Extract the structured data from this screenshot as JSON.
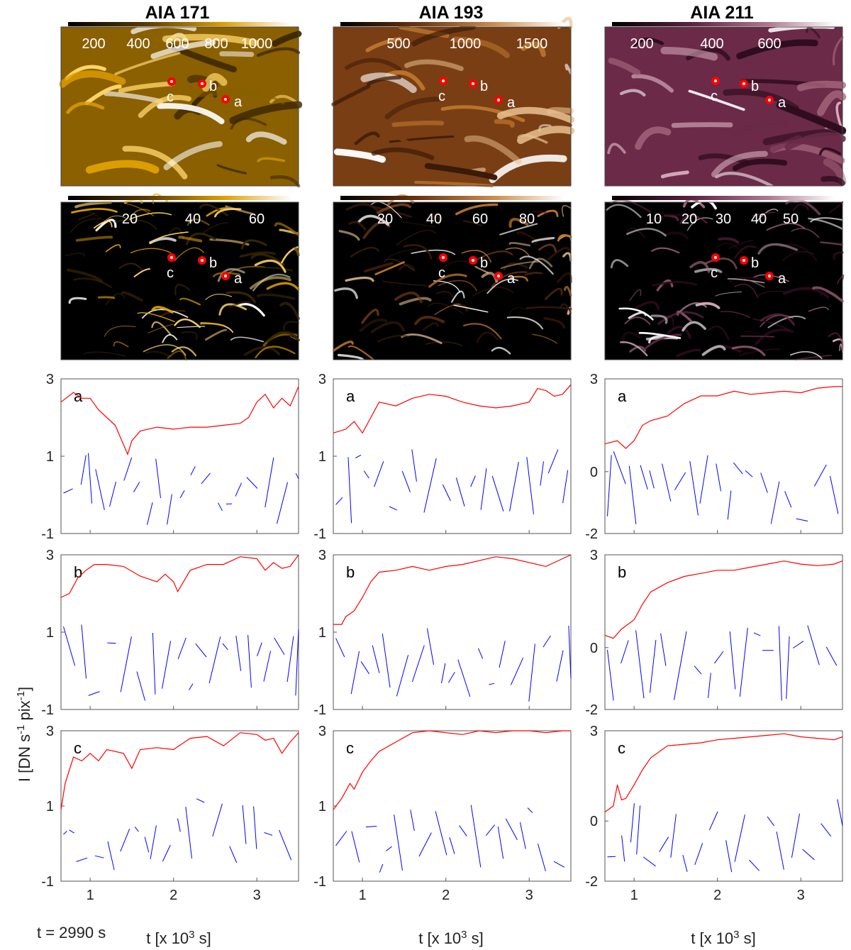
{
  "headers": [
    "AIA 171",
    "AIA 193",
    "AIA 211"
  ],
  "colors": {
    "aia171": [
      "#000000",
      "#3a2600",
      "#8a6000",
      "#e0a000",
      "#ffd66a",
      "#ffffff"
    ],
    "aia193": [
      "#000000",
      "#3a1a08",
      "#7a3e14",
      "#c0782e",
      "#e8c090",
      "#ffffff"
    ],
    "aia211": [
      "#000000",
      "#2c0c1c",
      "#6a2a48",
      "#a8687e",
      "#dcb2c2",
      "#ffffff"
    ],
    "smoothed": "#ff0000",
    "residual": "#0000ff",
    "marker": "#ff0000"
  },
  "colorbars": {
    "row1": [
      [
        "200",
        "400",
        "600",
        "800",
        "1000"
      ],
      [
        "500",
        "1000",
        "1500"
      ],
      [
        "200",
        "400",
        "600"
      ]
    ],
    "row2": [
      [
        "20",
        "40",
        "60"
      ],
      [
        "20",
        "40",
        "60",
        "80"
      ],
      [
        "10",
        "20",
        "30",
        "40",
        "50"
      ]
    ]
  },
  "point_labels": [
    "a",
    "b",
    "c"
  ],
  "y_axis_label": "I [DN s-1 pix-1]",
  "x_axis_label": "t [x 10^3 s]",
  "time_label": "t = 2990 s",
  "chart_data": [
    {
      "type": "line",
      "panel": "AIA 171 a",
      "xlim": [
        0.65,
        3.5
      ],
      "ylim": [
        -1,
        3
      ],
      "xticks": [
        1,
        2,
        3
      ],
      "yticks": [
        -1,
        1,
        3
      ],
      "series": [
        {
          "color": "red",
          "x": [
            0.65,
            0.8,
            0.9,
            1.0,
            1.1,
            1.2,
            1.3,
            1.4,
            1.45,
            1.5,
            1.6,
            1.8,
            2.0,
            2.2,
            2.4,
            2.6,
            2.8,
            2.9,
            3.0,
            3.1,
            3.2,
            3.3,
            3.4,
            3.5
          ],
          "y": [
            2.4,
            2.65,
            2.5,
            2.5,
            2.2,
            2.0,
            1.8,
            1.3,
            1.05,
            1.4,
            1.65,
            1.75,
            1.7,
            1.75,
            1.75,
            1.8,
            1.85,
            2.0,
            2.4,
            2.6,
            2.25,
            2.5,
            2.3,
            2.8
          ]
        }
      ]
    },
    {
      "type": "line",
      "panel": "AIA 193 a",
      "xlim": [
        0.65,
        3.5
      ],
      "ylim": [
        -1,
        3
      ],
      "xticks": [
        1,
        2,
        3
      ],
      "yticks": [
        -1,
        1,
        3
      ],
      "series": [
        {
          "color": "red",
          "x": [
            0.65,
            0.8,
            0.9,
            1.0,
            1.1,
            1.2,
            1.4,
            1.6,
            1.8,
            2.0,
            2.2,
            2.4,
            2.6,
            2.8,
            3.0,
            3.1,
            3.2,
            3.3,
            3.4,
            3.5
          ],
          "y": [
            1.6,
            1.7,
            1.9,
            1.6,
            2.0,
            2.4,
            2.3,
            2.5,
            2.6,
            2.55,
            2.4,
            2.3,
            2.25,
            2.3,
            2.4,
            2.75,
            2.7,
            2.55,
            2.6,
            2.85
          ]
        }
      ]
    },
    {
      "type": "line",
      "panel": "AIA 211 a",
      "xlim": [
        0.65,
        3.5
      ],
      "ylim": [
        -2,
        3
      ],
      "xticks": [
        1,
        2,
        3
      ],
      "yticks": [
        -2,
        0,
        3
      ],
      "series": [
        {
          "color": "red",
          "x": [
            0.65,
            0.8,
            0.9,
            1.0,
            1.1,
            1.2,
            1.4,
            1.6,
            1.8,
            2.0,
            2.2,
            2.4,
            2.6,
            2.8,
            3.0,
            3.2,
            3.4,
            3.5
          ],
          "y": [
            0.9,
            1.0,
            0.75,
            1.0,
            1.5,
            1.65,
            1.8,
            2.2,
            2.45,
            2.45,
            2.6,
            2.5,
            2.55,
            2.6,
            2.55,
            2.7,
            2.75,
            2.75
          ]
        }
      ]
    },
    {
      "type": "line",
      "panel": "AIA 171 b",
      "xlim": [
        0.65,
        3.5
      ],
      "ylim": [
        -1,
        3
      ],
      "xticks": [
        1,
        2,
        3
      ],
      "yticks": [
        -1,
        1,
        3
      ],
      "series": [
        {
          "color": "red",
          "x": [
            0.65,
            0.75,
            0.85,
            0.95,
            1.05,
            1.2,
            1.4,
            1.6,
            1.8,
            1.9,
            2.0,
            2.05,
            2.2,
            2.4,
            2.6,
            2.8,
            3.0,
            3.1,
            3.2,
            3.3,
            3.4,
            3.5
          ],
          "y": [
            1.9,
            2.0,
            2.4,
            2.6,
            2.75,
            2.75,
            2.7,
            2.45,
            2.3,
            2.5,
            2.3,
            2.05,
            2.6,
            2.75,
            2.75,
            2.95,
            2.9,
            2.6,
            2.8,
            2.65,
            2.7,
            3.0
          ]
        }
      ]
    },
    {
      "type": "line",
      "panel": "AIA 193 b",
      "xlim": [
        0.65,
        3.5
      ],
      "ylim": [
        -1,
        3
      ],
      "xticks": [
        1,
        2,
        3
      ],
      "yticks": [
        -1,
        1,
        3
      ],
      "series": [
        {
          "color": "red",
          "x": [
            0.65,
            0.75,
            0.8,
            0.9,
            1.0,
            1.1,
            1.2,
            1.4,
            1.6,
            1.8,
            2.0,
            2.2,
            2.4,
            2.6,
            2.8,
            3.0,
            3.2,
            3.4,
            3.5
          ],
          "y": [
            1.2,
            1.2,
            1.4,
            1.55,
            1.9,
            2.3,
            2.55,
            2.6,
            2.7,
            2.6,
            2.7,
            2.75,
            2.85,
            2.95,
            2.9,
            2.8,
            2.7,
            2.9,
            3.0
          ]
        }
      ]
    },
    {
      "type": "line",
      "panel": "AIA 211 b",
      "xlim": [
        0.65,
        3.5
      ],
      "ylim": [
        -2,
        3
      ],
      "xticks": [
        1,
        2,
        3
      ],
      "yticks": [
        -2,
        0,
        3
      ],
      "series": [
        {
          "color": "red",
          "x": [
            0.65,
            0.75,
            0.85,
            1.0,
            1.1,
            1.2,
            1.4,
            1.6,
            1.8,
            2.0,
            2.2,
            2.4,
            2.6,
            2.8,
            3.0,
            3.2,
            3.4,
            3.5
          ],
          "y": [
            0.4,
            0.3,
            0.6,
            0.9,
            1.4,
            1.8,
            2.1,
            2.3,
            2.4,
            2.5,
            2.5,
            2.6,
            2.7,
            2.8,
            2.7,
            2.65,
            2.7,
            2.8
          ]
        }
      ]
    },
    {
      "type": "line",
      "panel": "AIA 171 c",
      "xlim": [
        0.65,
        3.5
      ],
      "ylim": [
        -1,
        3
      ],
      "xticks": [
        1,
        2,
        3
      ],
      "yticks": [
        -1,
        1,
        3
      ],
      "series": [
        {
          "color": "red",
          "x": [
            0.65,
            0.7,
            0.8,
            0.9,
            1.0,
            1.1,
            1.2,
            1.4,
            1.5,
            1.6,
            1.8,
            2.0,
            2.2,
            2.4,
            2.6,
            2.8,
            3.0,
            3.1,
            3.2,
            3.3,
            3.4,
            3.5
          ],
          "y": [
            0.9,
            1.6,
            2.3,
            2.2,
            2.4,
            2.2,
            2.5,
            2.4,
            2.0,
            2.5,
            2.55,
            2.5,
            2.8,
            2.85,
            2.6,
            2.95,
            2.9,
            2.75,
            2.8,
            2.4,
            2.7,
            2.95
          ]
        }
      ]
    },
    {
      "type": "line",
      "panel": "AIA 193 c",
      "xlim": [
        0.65,
        3.5
      ],
      "ylim": [
        -1,
        3
      ],
      "xticks": [
        1,
        2,
        3
      ],
      "yticks": [
        -1,
        1,
        3
      ],
      "series": [
        {
          "color": "red",
          "x": [
            0.65,
            0.75,
            0.8,
            0.85,
            0.9,
            1.0,
            1.1,
            1.2,
            1.4,
            1.6,
            1.8,
            2.0,
            2.2,
            2.4,
            2.6,
            2.8,
            3.0,
            3.2,
            3.4,
            3.5
          ],
          "y": [
            0.9,
            1.2,
            1.4,
            1.6,
            1.45,
            1.9,
            2.2,
            2.45,
            2.7,
            2.95,
            3.0,
            2.95,
            2.9,
            3.0,
            2.95,
            3.0,
            3.0,
            2.95,
            3.0,
            3.0
          ]
        }
      ]
    },
    {
      "type": "line",
      "panel": "AIA 211 c",
      "xlim": [
        0.65,
        3.5
      ],
      "ylim": [
        -2,
        3
      ],
      "xticks": [
        1,
        2,
        3
      ],
      "yticks": [
        -2,
        0,
        3
      ],
      "series": [
        {
          "color": "red",
          "x": [
            0.65,
            0.75,
            0.8,
            0.85,
            0.9,
            1.0,
            1.1,
            1.2,
            1.4,
            1.6,
            1.8,
            2.0,
            2.2,
            2.4,
            2.6,
            2.8,
            3.0,
            3.2,
            3.4,
            3.5
          ],
          "y": [
            0.3,
            0.5,
            1.2,
            0.7,
            0.75,
            1.2,
            1.7,
            2.1,
            2.5,
            2.55,
            2.6,
            2.7,
            2.75,
            2.8,
            2.85,
            2.9,
            2.8,
            2.75,
            2.7,
            2.8
          ]
        }
      ]
    }
  ]
}
